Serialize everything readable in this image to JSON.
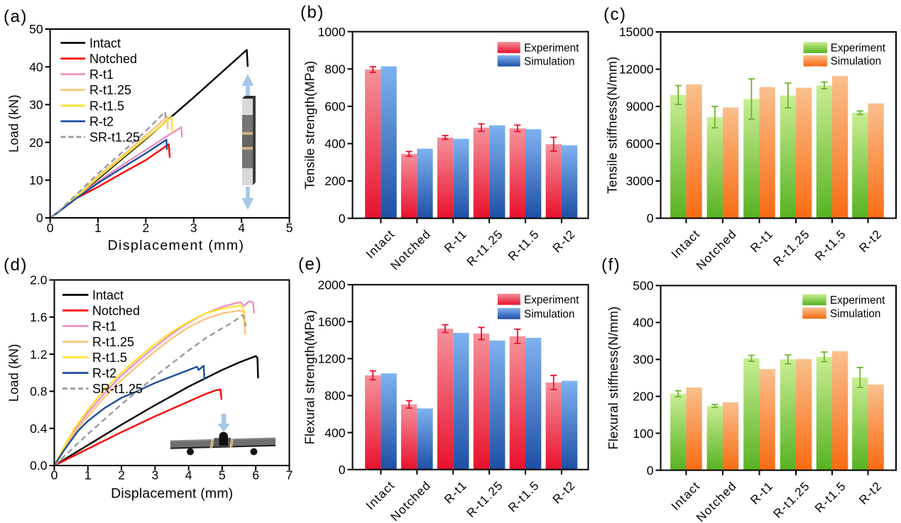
{
  "figure": {
    "background": "#ffffff",
    "text_color": "#000000",
    "axis_color": "#000000"
  },
  "panel_labels": {
    "a": "(a)",
    "b": "(b)",
    "c": "(c)",
    "d": "(d)",
    "e": "(e)",
    "f": "(f)"
  },
  "categories": [
    "Intact",
    "Notched",
    "R-t1",
    "R-t1.25",
    "R-t1.5",
    "R-t2"
  ],
  "line_legend": [
    "Intact",
    "Notched",
    "R-t1",
    "R-t1.25",
    "R-t1.5",
    "R-t2",
    "SR-t1.25"
  ],
  "bar_legend": [
    "Experiment",
    "Simulation"
  ],
  "colors": {
    "intact": "#000000",
    "notched": "#fe0000",
    "r_t1": "#ec92c2",
    "r_t125": "#fac580",
    "r_t15": "#ffe234",
    "r_t2": "#1c4fa1",
    "sr_t125": "#9b9b9b",
    "experiment_red_top": "#f5929b",
    "experiment_red_bottom": "#e8112d",
    "simulation_blue_top": "#7fb2f0",
    "simulation_blue_bottom": "#1e4fa5",
    "experiment_green_top": "#c9ee94",
    "experiment_green_bottom": "#57b221",
    "simulation_orange_top": "#fac08d",
    "simulation_orange_bottom": "#f96b12",
    "error_red": "#e8112d",
    "error_green": "#6cb52d",
    "inset_arrow_blue": "#a6c8e8",
    "inset_light_gray": "#d9d9d9",
    "inset_dark_gray": "#757575",
    "inset_tan": "#cdaf87"
  },
  "chart_data": [
    {
      "id": "a",
      "type": "line",
      "panel_label": "(a)",
      "xlabel": "Displacement (mm)",
      "ylabel": "Load (kN)",
      "xlim": [
        0,
        5
      ],
      "ylim": [
        0,
        50
      ],
      "xticks": [
        "0",
        "1",
        "2",
        "3",
        "4",
        "5"
      ],
      "yticks": [
        "0",
        "10",
        "20",
        "30",
        "40",
        "50"
      ],
      "legend_position": "top-left",
      "inset": "tensile-specimen",
      "series": [
        {
          "name": "Intact",
          "color": "#000000",
          "dash": null,
          "points": [
            [
              0,
              0
            ],
            [
              0.2,
              1.9
            ],
            [
              0.55,
              5.5
            ],
            [
              1,
              10.3
            ],
            [
              2,
              20.9
            ],
            [
              3,
              31.9
            ],
            [
              4.11,
              44.5
            ],
            [
              4.13,
              40.0
            ]
          ]
        },
        {
          "name": "Notched",
          "color": "#fe0000",
          "dash": null,
          "points": [
            [
              0,
              0
            ],
            [
              0.2,
              1.8
            ],
            [
              0.55,
              5.2
            ],
            [
              1,
              8.2
            ],
            [
              1.5,
              11.8
            ],
            [
              2,
              15.3
            ],
            [
              2.48,
              19.5
            ],
            [
              2.5,
              15.9
            ]
          ]
        },
        {
          "name": "R-t1",
          "color": "#ec92c2",
          "dash": null,
          "points": [
            [
              0,
              0
            ],
            [
              0.2,
              1.8
            ],
            [
              0.55,
              5.3
            ],
            [
              1,
              9.6
            ],
            [
              1.5,
              13.9
            ],
            [
              2,
              18.0
            ],
            [
              2.45,
              21.7
            ],
            [
              2.74,
              24.0
            ],
            [
              2.76,
              21.3
            ]
          ]
        },
        {
          "name": "R-t1.25",
          "color": "#fac580",
          "dash": null,
          "points": [
            [
              0,
              0
            ],
            [
              0.2,
              1.9
            ],
            [
              0.55,
              5.8
            ],
            [
              1,
              11.0
            ],
            [
              1.5,
              16.4
            ],
            [
              2,
              21.8
            ],
            [
              2.45,
              26.8
            ],
            [
              2.46,
              23.4
            ]
          ]
        },
        {
          "name": "R-t1.5",
          "color": "#ffe234",
          "dash": null,
          "points": [
            [
              0,
              0
            ],
            [
              0.2,
              1.9
            ],
            [
              0.55,
              5.6
            ],
            [
              1,
              10.6
            ],
            [
              1.5,
              15.9
            ],
            [
              2,
              21.1
            ],
            [
              2.54,
              26.7
            ],
            [
              2.55,
              22.8
            ]
          ]
        },
        {
          "name": "R-t2",
          "color": "#1c4fa1",
          "dash": null,
          "points": [
            [
              0,
              0
            ],
            [
              0.2,
              1.8
            ],
            [
              0.55,
              5.2
            ],
            [
              1,
              9.2
            ],
            [
              1.5,
              13.2
            ],
            [
              2,
              17.1
            ],
            [
              2.43,
              20.7
            ],
            [
              2.44,
              18.0
            ]
          ]
        },
        {
          "name": "SR-t1.25",
          "color": "#9b9b9b",
          "dash": "8 5",
          "points": [
            [
              0,
              0
            ],
            [
              0.2,
              2.0
            ],
            [
              0.55,
              6.2
            ],
            [
              1,
              11.7
            ],
            [
              1.5,
              17.3
            ],
            [
              2,
              23.0
            ],
            [
              2.4,
              28.1
            ],
            [
              2.42,
              26.3
            ]
          ]
        }
      ]
    },
    {
      "id": "b",
      "type": "bar",
      "panel_label": "(b)",
      "ylabel": "Tensile strength(MPa)",
      "ylim": [
        0,
        1000
      ],
      "yticks": [
        "0",
        "200",
        "400",
        "600",
        "800",
        "1000"
      ],
      "categories": [
        "Intact",
        "Notched",
        "R-t1",
        "R-t1.25",
        "R-t1.5",
        "R-t2"
      ],
      "series": [
        {
          "name": "Experiment",
          "gradient": [
            "#f5929b",
            "#e8112d"
          ],
          "error_color": "#e8112d",
          "values": [
            797,
            345,
            433,
            486,
            482,
            397
          ],
          "errors": [
            15,
            13,
            10,
            20,
            17,
            37
          ]
        },
        {
          "name": "Simulation",
          "gradient": [
            "#7fb2f0",
            "#1e4fa5"
          ],
          "values": [
            814,
            373,
            426,
            498,
            477,
            391
          ]
        }
      ]
    },
    {
      "id": "c",
      "type": "bar",
      "panel_label": "(c)",
      "ylabel": "Tensile stiffness(N/mm)",
      "ylim": [
        0,
        15000
      ],
      "yticks": [
        "0",
        "3000",
        "6000",
        "9000",
        "12000",
        "15000"
      ],
      "categories": [
        "Intact",
        "Notched",
        "R-t1",
        "R-t1.25",
        "R-t1.5",
        "R-t2"
      ],
      "series": [
        {
          "name": "Experiment",
          "gradient": [
            "#c9ee94",
            "#57b221"
          ],
          "error_color": "#6cb52d",
          "values": [
            9920,
            8140,
            9600,
            9880,
            10690,
            8490
          ],
          "errors": [
            760,
            860,
            1620,
            1000,
            270,
            140
          ]
        },
        {
          "name": "Simulation",
          "gradient": [
            "#fac08d",
            "#f96b12"
          ],
          "values": [
            10780,
            8920,
            10560,
            10510,
            11450,
            9250
          ]
        }
      ]
    },
    {
      "id": "d",
      "type": "line",
      "panel_label": "(d)",
      "xlabel": "Displacement (mm)",
      "ylabel": "Load (kN)",
      "xlim": [
        0,
        7
      ],
      "ylim": [
        0,
        2
      ],
      "xticks": [
        "0",
        "1",
        "2",
        "3",
        "4",
        "5",
        "6",
        "7"
      ],
      "yticks": [
        "0.0",
        "0.4",
        "0.8",
        "1.2",
        "1.6",
        "2.0"
      ],
      "legend_position": "top-left",
      "inset": "bending-specimen",
      "series": [
        {
          "name": "Intact",
          "color": "#000000",
          "dash": null,
          "points": [
            [
              0,
              0
            ],
            [
              0.5,
              0.11
            ],
            [
              1,
              0.22
            ],
            [
              2,
              0.44
            ],
            [
              3,
              0.65
            ],
            [
              4,
              0.85
            ],
            [
              5,
              1.03
            ],
            [
              5.5,
              1.11
            ],
            [
              6.0,
              1.18
            ],
            [
              6.05,
              1.16
            ],
            [
              6.07,
              0.94
            ]
          ]
        },
        {
          "name": "Notched",
          "color": "#fe0000",
          "dash": null,
          "points": [
            [
              0,
              0
            ],
            [
              0.5,
              0.09
            ],
            [
              1,
              0.18
            ],
            [
              2,
              0.36
            ],
            [
              3,
              0.53
            ],
            [
              4,
              0.69
            ],
            [
              4.5,
              0.77
            ],
            [
              4.8,
              0.81
            ],
            [
              4.95,
              0.82
            ],
            [
              4.98,
              0.71
            ]
          ]
        },
        {
          "name": "R-t1",
          "color": "#ec92c2",
          "dash": null,
          "points": [
            [
              0,
              0
            ],
            [
              0.3,
              0.2
            ],
            [
              0.6,
              0.38
            ],
            [
              1,
              0.57
            ],
            [
              1.5,
              0.78
            ],
            [
              2,
              0.97
            ],
            [
              2.5,
              1.13
            ],
            [
              3,
              1.28
            ],
            [
              3.5,
              1.42
            ],
            [
              4,
              1.54
            ],
            [
              4.5,
              1.64
            ],
            [
              5,
              1.71
            ],
            [
              5.4,
              1.75
            ],
            [
              5.55,
              1.76
            ],
            [
              5.65,
              1.72
            ],
            [
              5.8,
              1.77
            ],
            [
              5.92,
              1.76
            ],
            [
              5.95,
              1.64
            ]
          ]
        },
        {
          "name": "R-t1.25",
          "color": "#fac580",
          "dash": null,
          "points": [
            [
              0,
              0
            ],
            [
              0.3,
              0.18
            ],
            [
              0.6,
              0.35
            ],
            [
              1,
              0.53
            ],
            [
              1.5,
              0.74
            ],
            [
              2,
              0.92
            ],
            [
              2.5,
              1.08
            ],
            [
              3,
              1.23
            ],
            [
              3.5,
              1.37
            ],
            [
              4,
              1.49
            ],
            [
              4.5,
              1.58
            ],
            [
              5,
              1.64
            ],
            [
              5.5,
              1.67
            ],
            [
              5.66,
              1.66
            ],
            [
              5.68,
              1.41
            ]
          ]
        },
        {
          "name": "R-t1.5",
          "color": "#ffe234",
          "dash": null,
          "points": [
            [
              0,
              0
            ],
            [
              0.3,
              0.21
            ],
            [
              0.6,
              0.4
            ],
            [
              1,
              0.6
            ],
            [
              1.5,
              0.82
            ],
            [
              2,
              1.0
            ],
            [
              2.5,
              1.16
            ],
            [
              3,
              1.31
            ],
            [
              3.5,
              1.44
            ],
            [
              4,
              1.55
            ],
            [
              4.5,
              1.64
            ],
            [
              5,
              1.69
            ],
            [
              5.3,
              1.71
            ],
            [
              5.55,
              1.725
            ],
            [
              5.62,
              1.7
            ],
            [
              5.65,
              1.52
            ]
          ]
        },
        {
          "name": "R-t2",
          "color": "#1c4fa1",
          "dash": null,
          "points": [
            [
              0,
              0
            ],
            [
              0.3,
              0.17
            ],
            [
              0.7,
              0.37
            ],
            [
              1,
              0.48
            ],
            [
              1.5,
              0.62
            ],
            [
              2,
              0.73
            ],
            [
              2.4,
              0.79
            ],
            [
              3,
              0.89
            ],
            [
              3.5,
              0.96
            ],
            [
              4,
              1.03
            ],
            [
              4.25,
              1.065
            ],
            [
              4.3,
              1.03
            ],
            [
              4.45,
              1.075
            ],
            [
              4.47,
              0.925
            ]
          ]
        },
        {
          "name": "SR-t1.25",
          "color": "#9b9b9b",
          "dash": "8 5",
          "points": [
            [
              0,
              0
            ],
            [
              0.5,
              0.17
            ],
            [
              1,
              0.34
            ],
            [
              1.5,
              0.5
            ],
            [
              2,
              0.66
            ],
            [
              2.5,
              0.81
            ],
            [
              3,
              0.96
            ],
            [
              3.5,
              1.1
            ],
            [
              4,
              1.24
            ],
            [
              4.5,
              1.37
            ],
            [
              5,
              1.48
            ],
            [
              5.3,
              1.54
            ],
            [
              5.6,
              1.62
            ],
            [
              5.65,
              1.6
            ],
            [
              5.7,
              1.5
            ]
          ]
        }
      ]
    },
    {
      "id": "e",
      "type": "bar",
      "panel_label": "(e)",
      "ylabel": "Flexural strength(MPa)",
      "ylim": [
        0,
        2000
      ],
      "yticks": [
        "0",
        "400",
        "800",
        "1200",
        "1600",
        "2000"
      ],
      "categories": [
        "Intact",
        "Notched",
        "R-t1",
        "R-t1.25",
        "R-t1.5",
        "R-t2"
      ],
      "series": [
        {
          "name": "Experiment",
          "gradient": [
            "#f5929b",
            "#e8112d"
          ],
          "error_color": "#e8112d",
          "values": [
            1020,
            705,
            1525,
            1472,
            1442,
            942
          ],
          "errors": [
            48,
            40,
            42,
            66,
            77,
            76
          ]
        },
        {
          "name": "Simulation",
          "gradient": [
            "#7fb2f0",
            "#1e4fa5"
          ],
          "values": [
            1040,
            662,
            1478,
            1396,
            1425,
            960
          ]
        }
      ]
    },
    {
      "id": "f",
      "type": "bar",
      "panel_label": "(f)",
      "ylabel": "Flexural stiffness(N/mm)",
      "ylim": [
        0,
        500
      ],
      "yticks": [
        "0",
        "100",
        "200",
        "300",
        "400",
        "500"
      ],
      "categories": [
        "Intact",
        "Notched",
        "R-t1",
        "R-t1.25",
        "R-t1.5",
        "R-t2"
      ],
      "series": [
        {
          "name": "Experiment",
          "gradient": [
            "#c9ee94",
            "#57b221"
          ],
          "error_color": "#6cb52d",
          "values": [
            207,
            174,
            303,
            300,
            307,
            251
          ],
          "errors": [
            8,
            4,
            8,
            12,
            13,
            27
          ]
        },
        {
          "name": "Simulation",
          "gradient": [
            "#fac08d",
            "#f96b12"
          ],
          "values": [
            224,
            184,
            274,
            301,
            322,
            232
          ]
        }
      ]
    }
  ]
}
